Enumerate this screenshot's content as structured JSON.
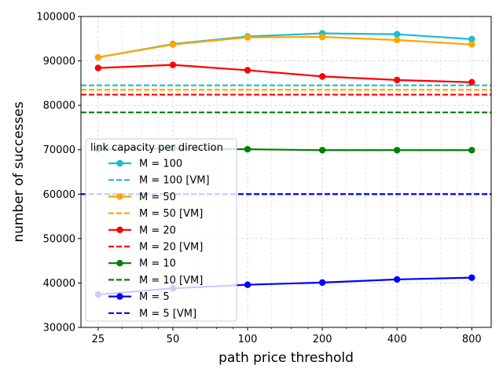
{
  "chart_data": {
    "type": "line",
    "xscale": "log2",
    "x": [
      25,
      50,
      100,
      200,
      400,
      800
    ],
    "x_tick_labels": [
      "25",
      "50",
      "100",
      "200",
      "400",
      "800"
    ],
    "xlabel": "path price threshold",
    "ylabel": "number of successes",
    "ylim": [
      30000,
      100000
    ],
    "y_ticks": [
      30000,
      40000,
      50000,
      60000,
      70000,
      80000,
      90000,
      100000
    ],
    "y_tick_labels": [
      "30000",
      "40000",
      "50000",
      "60000",
      "70000",
      "80000",
      "90000",
      "100000"
    ],
    "grid": true,
    "legend_title": "link capacity per direction",
    "legend_placement": "lower-left",
    "series": [
      {
        "name": "M = 100",
        "color": "#17becf",
        "style": "solid-marker",
        "values": [
          90800,
          93800,
          95500,
          96200,
          96000,
          94900
        ]
      },
      {
        "name": "M = 100 [VM]",
        "color": "#17becf",
        "style": "dashed",
        "value": 84500
      },
      {
        "name": "M = 50",
        "color": "#ffa500",
        "style": "solid-marker",
        "values": [
          90800,
          93700,
          95300,
          95400,
          94700,
          93700
        ]
      },
      {
        "name": "M = 50 [VM]",
        "color": "#ffa500",
        "style": "dashed",
        "value": 83500
      },
      {
        "name": "M = 20",
        "color": "#ff0000",
        "style": "solid-marker",
        "values": [
          88400,
          89100,
          87900,
          86500,
          85700,
          85200
        ]
      },
      {
        "name": "M = 20 [VM]",
        "color": "#ff0000",
        "style": "dashed",
        "value": 82400
      },
      {
        "name": "M = 10",
        "color": "#008000",
        "style": "solid-marker",
        "values": [
          70100,
          70300,
          70100,
          69900,
          69900,
          69900
        ]
      },
      {
        "name": "M = 10 [VM]",
        "color": "#008000",
        "style": "dashed",
        "value": 78400
      },
      {
        "name": "M = 5",
        "color": "#0000ff",
        "style": "solid-marker",
        "values": [
          37400,
          38800,
          39600,
          40100,
          40800,
          41200
        ]
      },
      {
        "name": "M = 5 [VM]",
        "color": "#0000ff",
        "style": "dashed",
        "value": 60000
      }
    ]
  }
}
